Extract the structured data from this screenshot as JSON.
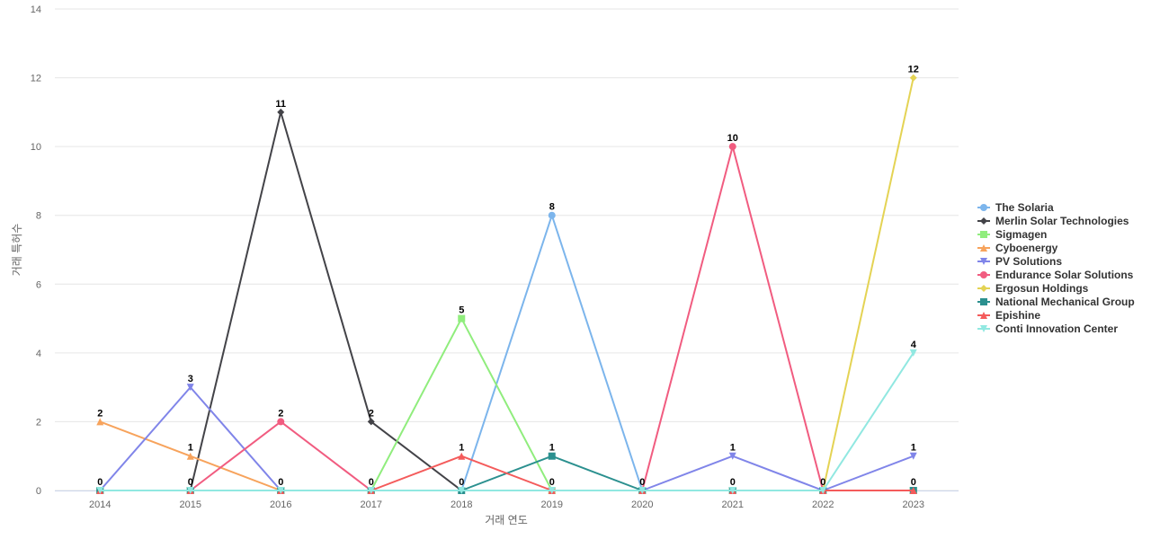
{
  "chart_data": {
    "type": "line",
    "title": "",
    "xlabel": "거래 연도",
    "ylabel": "거래 특허수",
    "x": [
      "2014",
      "2015",
      "2016",
      "2017",
      "2018",
      "2019",
      "2020",
      "2021",
      "2022",
      "2023"
    ],
    "ylim": [
      0,
      14
    ],
    "yticks": [
      0,
      2,
      4,
      6,
      8,
      10,
      12,
      14
    ],
    "grid": true,
    "legend_position": "right",
    "series": [
      {
        "name": "The Solaria",
        "color": "#7cb5ec",
        "marker": "circle",
        "values": [
          0,
          0,
          0,
          0,
          0,
          8,
          0,
          0,
          0,
          0
        ]
      },
      {
        "name": "Merlin Solar Technologies",
        "color": "#434348",
        "marker": "diamond",
        "values": [
          0,
          0,
          11,
          2,
          0,
          0,
          0,
          0,
          0,
          0
        ]
      },
      {
        "name": "Sigmagen",
        "color": "#90ed7d",
        "marker": "square",
        "values": [
          0,
          0,
          0,
          0,
          5,
          0,
          0,
          0,
          0,
          0
        ]
      },
      {
        "name": "Cyboenergy",
        "color": "#f7a35c",
        "marker": "triangle",
        "values": [
          2,
          1,
          0,
          0,
          0,
          0,
          0,
          0,
          0,
          0
        ]
      },
      {
        "name": "PV Solutions",
        "color": "#8085e9",
        "marker": "triangle-down",
        "values": [
          0,
          3,
          0,
          0,
          0,
          0,
          0,
          1,
          0,
          1
        ]
      },
      {
        "name": "Endurance Solar Solutions",
        "color": "#f15c80",
        "marker": "circle",
        "values": [
          0,
          0,
          2,
          0,
          0,
          0,
          0,
          10,
          0,
          0
        ]
      },
      {
        "name": "Ergosun Holdings",
        "color": "#e4d354",
        "marker": "diamond",
        "values": [
          0,
          0,
          0,
          0,
          0,
          0,
          0,
          0,
          0,
          12
        ]
      },
      {
        "name": "National Mechanical Group",
        "color": "#2b908f",
        "marker": "square",
        "values": [
          0,
          0,
          0,
          0,
          0,
          1,
          0,
          0,
          0,
          0
        ]
      },
      {
        "name": "Epishine",
        "color": "#f45b5b",
        "marker": "triangle",
        "values": [
          0,
          0,
          0,
          0,
          1,
          0,
          0,
          0,
          0,
          0
        ]
      },
      {
        "name": "Conti Innovation Center",
        "color": "#91e8e1",
        "marker": "triangle-down",
        "values": [
          0,
          0,
          0,
          0,
          0,
          0,
          0,
          0,
          0,
          4
        ]
      }
    ],
    "data_labels": [
      {
        "x": "2014",
        "value": 2,
        "series": "Cyboenergy"
      },
      {
        "x": "2014",
        "value": 0,
        "series": "The Solaria"
      },
      {
        "x": "2015",
        "value": 3,
        "series": "PV Solutions"
      },
      {
        "x": "2015",
        "value": 1,
        "series": "Cyboenergy"
      },
      {
        "x": "2015",
        "value": 0,
        "series": "The Solaria"
      },
      {
        "x": "2016",
        "value": 11,
        "series": "Merlin Solar Technologies"
      },
      {
        "x": "2016",
        "value": 2,
        "series": "Endurance Solar Solutions"
      },
      {
        "x": "2016",
        "value": 0,
        "series": "The Solaria"
      },
      {
        "x": "2017",
        "value": 2,
        "series": "Merlin Solar Technologies"
      },
      {
        "x": "2017",
        "value": 0,
        "series": "The Solaria"
      },
      {
        "x": "2018",
        "value": 5,
        "series": "Sigmagen"
      },
      {
        "x": "2018",
        "value": 1,
        "series": "Epishine"
      },
      {
        "x": "2018",
        "value": 0,
        "series": "The Solaria"
      },
      {
        "x": "2019",
        "value": 8,
        "series": "The Solaria"
      },
      {
        "x": "2019",
        "value": 1,
        "series": "National Mechanical Group"
      },
      {
        "x": "2019",
        "value": 0,
        "series": "Sigmagen"
      },
      {
        "x": "2020",
        "value": 0,
        "series": "The Solaria"
      },
      {
        "x": "2021",
        "value": 10,
        "series": "Endurance Solar Solutions"
      },
      {
        "x": "2021",
        "value": 1,
        "series": "PV Solutions"
      },
      {
        "x": "2021",
        "value": 0,
        "series": "The Solaria"
      },
      {
        "x": "2022",
        "value": 0,
        "series": "The Solaria"
      },
      {
        "x": "2023",
        "value": 12,
        "series": "Ergosun Holdings"
      },
      {
        "x": "2023",
        "value": 4,
        "series": "Conti Innovation Center"
      },
      {
        "x": "2023",
        "value": 1,
        "series": "PV Solutions"
      },
      {
        "x": "2023",
        "value": 0,
        "series": "National Mechanical Group"
      }
    ]
  }
}
